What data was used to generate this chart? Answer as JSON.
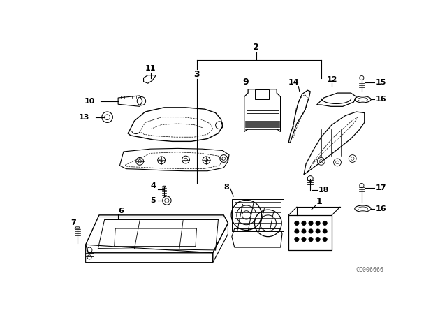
{
  "bg_color": "#ffffff",
  "line_color": "#000000",
  "figsize": [
    6.4,
    4.48
  ],
  "dpi": 100,
  "watermark": "CC006666"
}
